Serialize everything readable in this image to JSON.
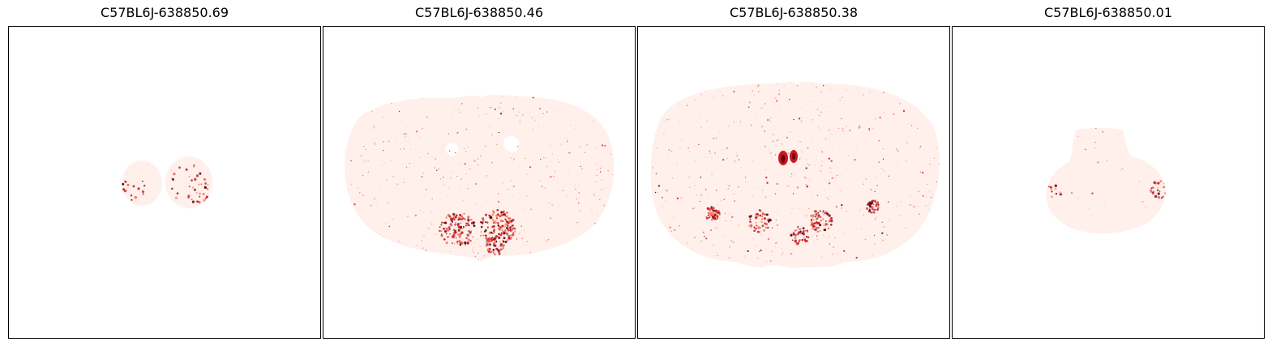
{
  "figure": {
    "panels": [
      {
        "title": "C57BL6J-638850.69",
        "colormap": "Reds"
      },
      {
        "title": "C57BL6J-638850.46",
        "colormap": "Reds"
      },
      {
        "title": "C57BL6J-638850.38",
        "colormap": "Reds"
      },
      {
        "title": "C57BL6J-638850.01",
        "colormap": "Reds"
      }
    ]
  },
  "colors": {
    "tissue": "#fff0ec",
    "low": "#fcbba1",
    "mid": "#fb6a4a",
    "high": "#cb181d",
    "max": "#67000d",
    "frame": "#000000"
  }
}
